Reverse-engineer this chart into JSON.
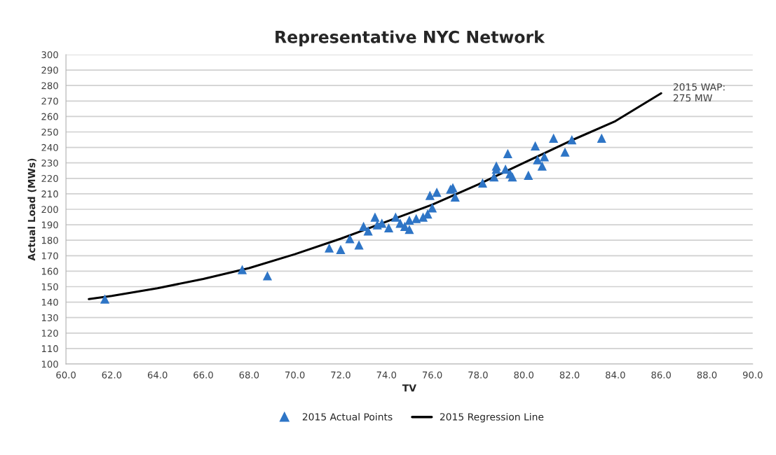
{
  "chart_data": {
    "type": "scatter",
    "title": "Representative NYC Network",
    "xlabel": "TV",
    "ylabel": "Actual Load (MWs)",
    "xlim": [
      60,
      90
    ],
    "xticks": [
      {
        "value": 60,
        "label": "60.0"
      },
      {
        "value": 62,
        "label": "62.0"
      },
      {
        "value": 64,
        "label": "64.0"
      },
      {
        "value": 66,
        "label": "66.0"
      },
      {
        "value": 68,
        "label": "68.0"
      },
      {
        "value": 70,
        "label": "70.0"
      },
      {
        "value": 72,
        "label": "72.0"
      },
      {
        "value": 74,
        "label": "74.0"
      },
      {
        "value": 76,
        "label": "76.0"
      },
      {
        "value": 78,
        "label": "78.0"
      },
      {
        "value": 80,
        "label": "80.0"
      },
      {
        "value": 82,
        "label": "82.0"
      },
      {
        "value": 84,
        "label": "84.0"
      },
      {
        "value": 86,
        "label": "86.0"
      },
      {
        "value": 88,
        "label": "88.0"
      },
      {
        "value": 90,
        "label": "90.0"
      }
    ],
    "ylim": [
      100,
      300
    ],
    "yticks": [
      100,
      110,
      120,
      130,
      140,
      150,
      160,
      170,
      180,
      190,
      200,
      210,
      220,
      230,
      240,
      250,
      260,
      270,
      280,
      290,
      300
    ],
    "grid": "y",
    "legend": "bottom",
    "annotations": [
      {
        "text": "2015 WAP:\n275 MW",
        "x": 86,
        "y": 275
      }
    ],
    "series": [
      {
        "name": "2015 Actual Points",
        "marker": "triangle",
        "color": "#2e75c6",
        "x": [
          61.7,
          67.7,
          68.8,
          71.5,
          72.0,
          72.4,
          72.8,
          73.0,
          73.2,
          73.5,
          73.6,
          73.8,
          74.1,
          74.4,
          74.6,
          74.8,
          75.0,
          75.0,
          75.3,
          75.6,
          75.8,
          75.9,
          76.0,
          76.2,
          76.8,
          76.9,
          77.0,
          78.2,
          78.7,
          78.8,
          78.8,
          79.2,
          79.3,
          79.4,
          79.5,
          80.2,
          80.5,
          80.6,
          80.8,
          80.9,
          81.3,
          81.8,
          82.1,
          83.4
        ],
        "values": [
          142,
          161,
          157,
          175,
          174,
          181,
          177,
          189,
          186,
          195,
          190,
          191,
          188,
          195,
          191,
          189,
          187,
          193,
          194,
          195,
          197,
          209,
          201,
          211,
          213,
          214,
          208,
          217,
          221,
          226,
          228,
          226,
          236,
          223,
          221,
          222,
          241,
          232,
          228,
          234,
          246,
          237,
          245,
          246
        ]
      },
      {
        "name": "2015 Regression Line",
        "type": "line",
        "marker": "none",
        "line_style": "solid",
        "color": "#000000",
        "x": [
          61,
          62,
          64,
          66,
          68,
          70,
          72,
          74,
          76,
          78,
          80,
          82,
          84,
          86
        ],
        "values": [
          142,
          144,
          149,
          155,
          162,
          171,
          181,
          192,
          203,
          216,
          230,
          244,
          257,
          275
        ]
      }
    ]
  }
}
